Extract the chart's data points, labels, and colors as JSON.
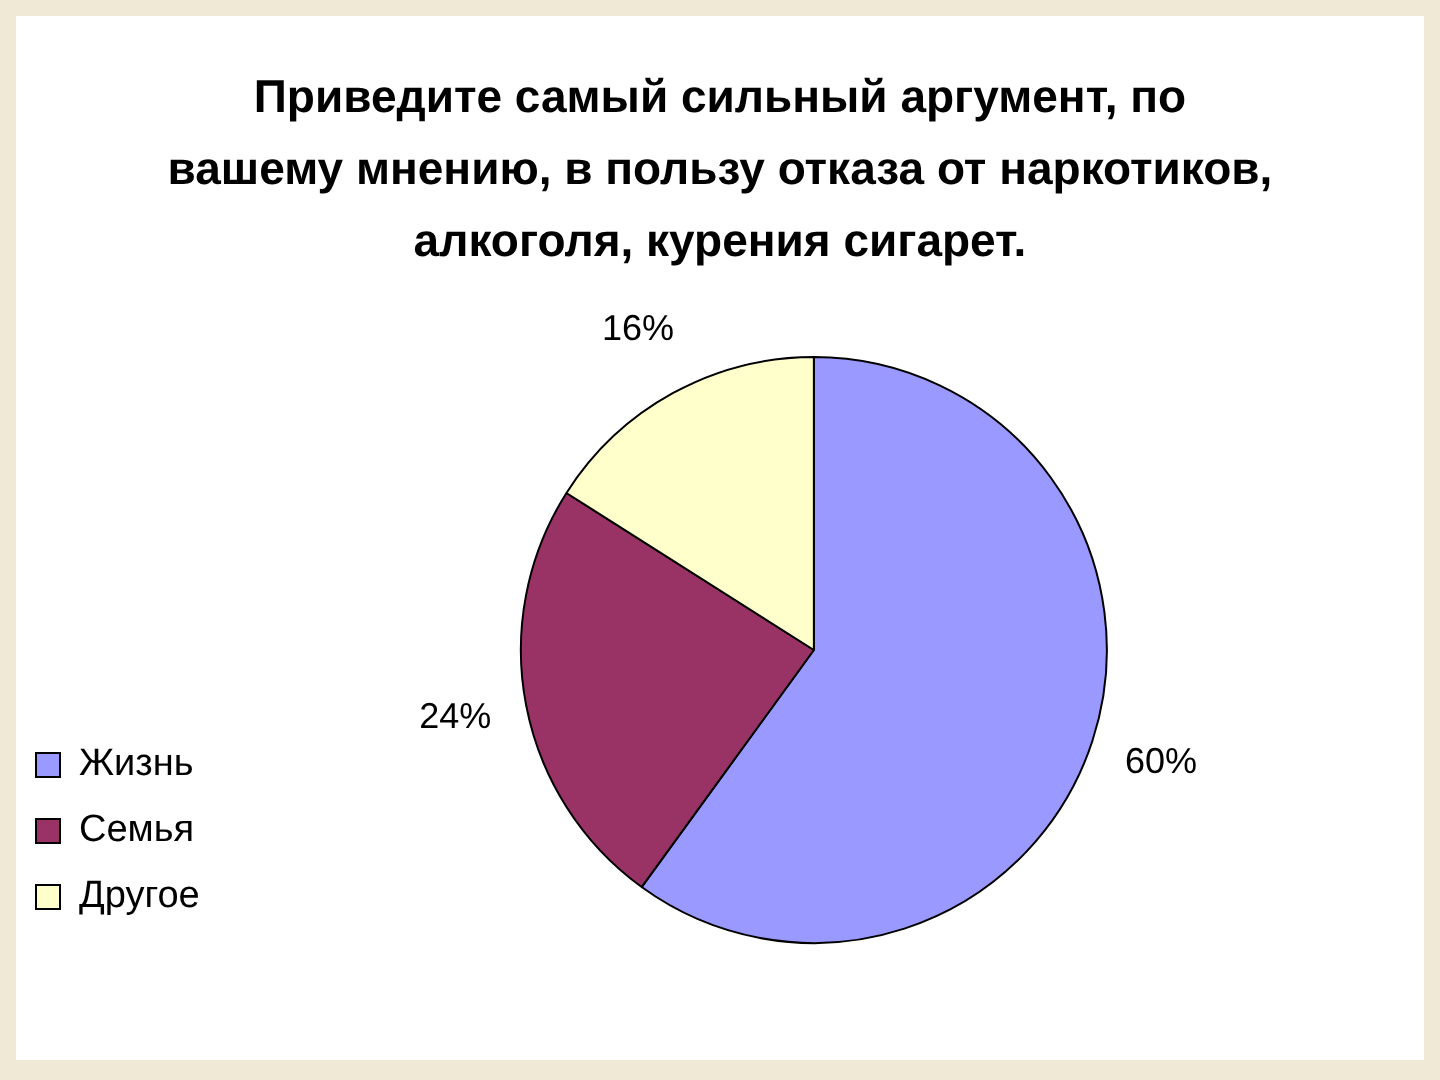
{
  "chart_data": {
    "type": "pie",
    "title": "Приведите самый сильный аргумент, по вашему мнению, в пользу отказа от наркотиков, алкоголя, курения сигарет.",
    "categories": [
      "Жизнь",
      "Семья",
      "Другое"
    ],
    "values": [
      60,
      24,
      16
    ],
    "colors": [
      "#9999ff",
      "#993366",
      "#ffffcc"
    ],
    "value_labels": [
      "60%",
      "24%",
      "16%"
    ],
    "legend": "bottom left"
  }
}
